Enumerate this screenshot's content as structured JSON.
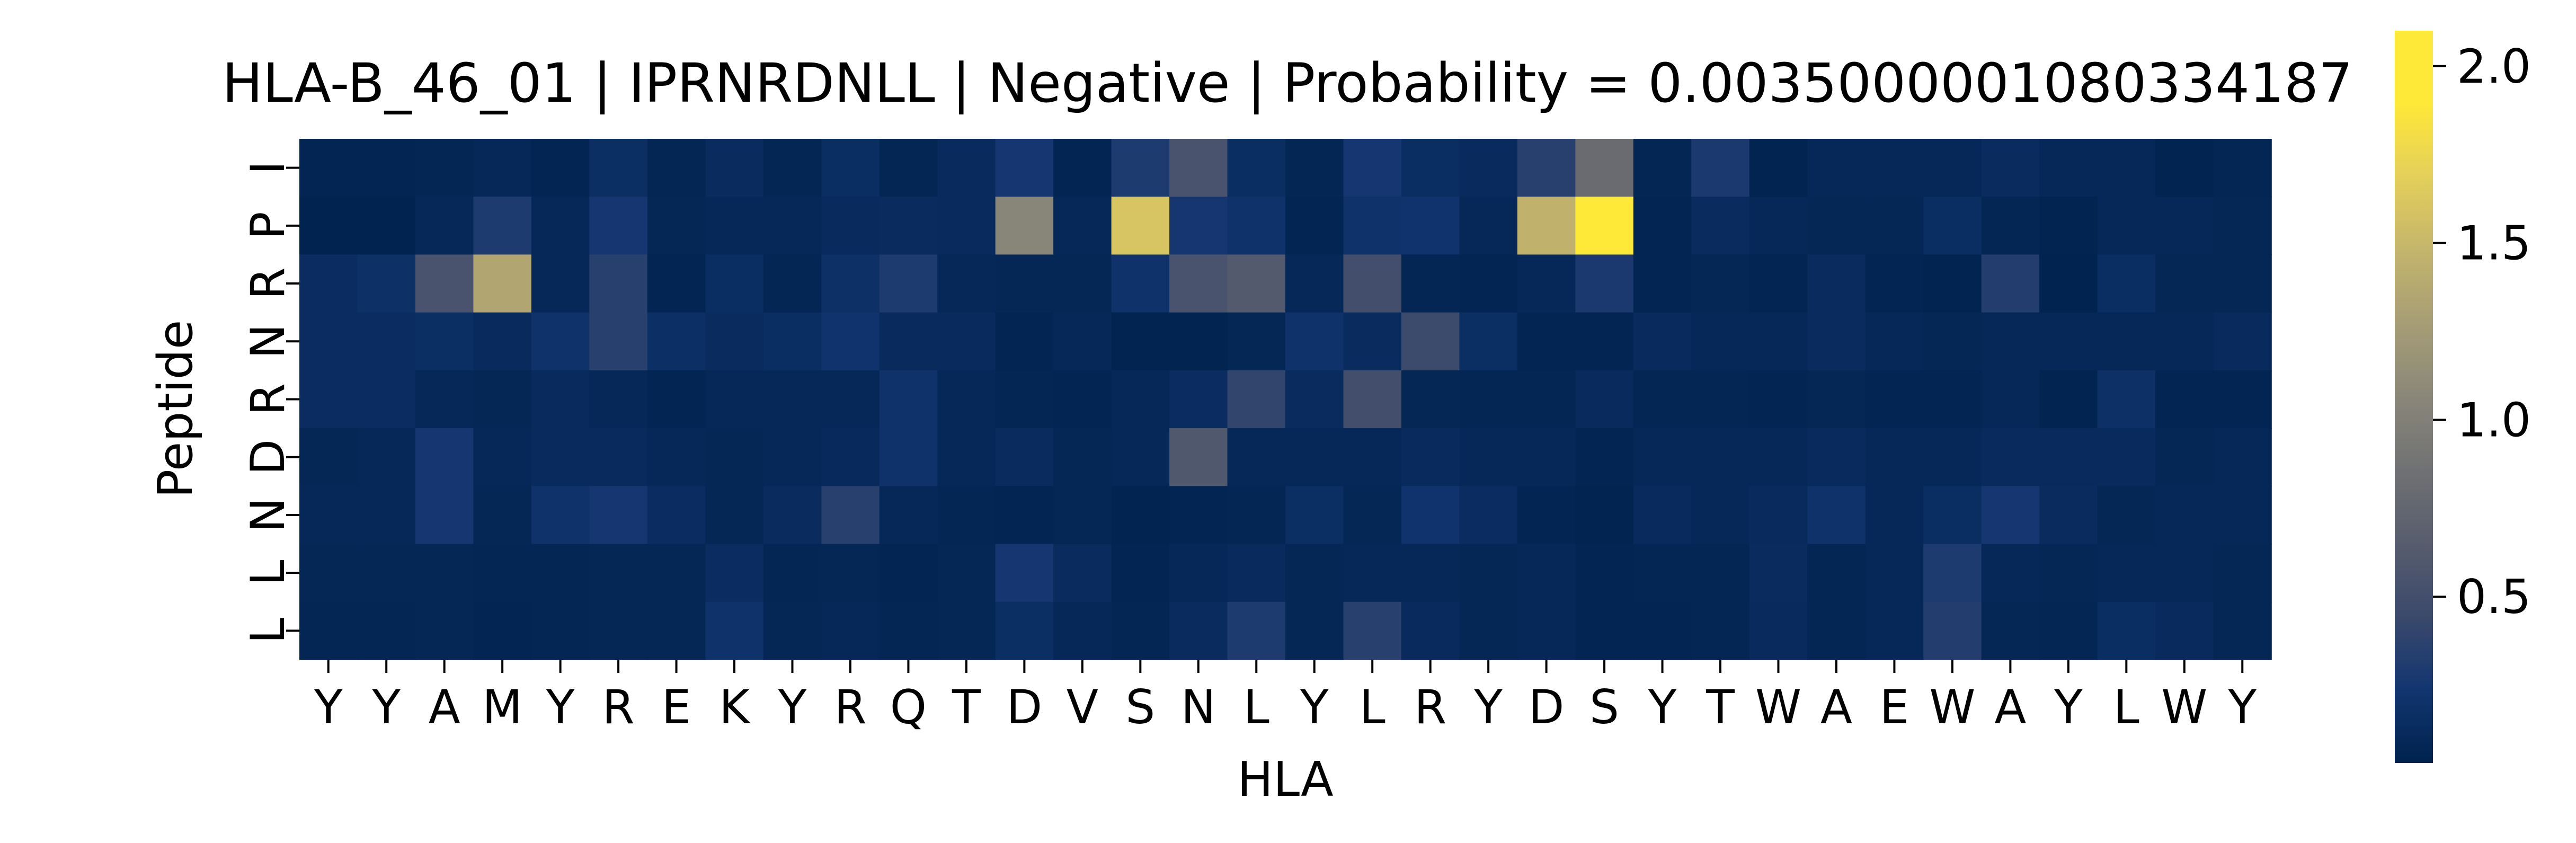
{
  "chart_data": {
    "type": "heatmap",
    "title": "HLA-B_46_01 | IPRNRDNLL | Negative | Probability = 0.0035000001080334187",
    "xlabel": "HLA",
    "ylabel": "Peptide",
    "x_categories": [
      "Y",
      "Y",
      "A",
      "M",
      "Y",
      "R",
      "E",
      "K",
      "Y",
      "R",
      "Q",
      "T",
      "D",
      "V",
      "S",
      "N",
      "L",
      "Y",
      "L",
      "R",
      "Y",
      "D",
      "S",
      "Y",
      "T",
      "W",
      "A",
      "E",
      "W",
      "A",
      "Y",
      "L",
      "W",
      "Y"
    ],
    "y_categories": [
      "I",
      "P",
      "R",
      "N",
      "R",
      "D",
      "N",
      "L",
      "L"
    ],
    "colormap": "cividis",
    "colorbar": {
      "min": 0.03,
      "max": 2.1,
      "ticks": [
        0.5,
        1.0,
        1.5,
        2.0
      ],
      "tick_labels": [
        "0.5",
        "1.0",
        "1.5",
        "2.0"
      ]
    },
    "values": [
      [
        0.06,
        0.06,
        0.07,
        0.1,
        0.06,
        0.16,
        0.07,
        0.13,
        0.07,
        0.15,
        0.07,
        0.12,
        0.25,
        0.06,
        0.3,
        0.55,
        0.15,
        0.07,
        0.25,
        0.15,
        0.12,
        0.35,
        0.8,
        0.07,
        0.28,
        0.05,
        0.1,
        0.1,
        0.1,
        0.13,
        0.1,
        0.1,
        0.05,
        0.07
      ],
      [
        0.04,
        0.04,
        0.1,
        0.3,
        0.1,
        0.25,
        0.08,
        0.1,
        0.1,
        0.12,
        0.13,
        0.12,
        1.05,
        0.1,
        1.6,
        0.25,
        0.2,
        0.06,
        0.2,
        0.22,
        0.1,
        1.45,
        2.1,
        0.06,
        0.13,
        0.1,
        0.08,
        0.08,
        0.15,
        0.07,
        0.05,
        0.1,
        0.1,
        0.08
      ],
      [
        0.14,
        0.18,
        0.55,
        1.35,
        0.1,
        0.35,
        0.06,
        0.15,
        0.07,
        0.18,
        0.3,
        0.1,
        0.08,
        0.08,
        0.2,
        0.55,
        0.62,
        0.1,
        0.5,
        0.07,
        0.06,
        0.1,
        0.28,
        0.06,
        0.08,
        0.06,
        0.13,
        0.06,
        0.05,
        0.32,
        0.04,
        0.15,
        0.08,
        0.08
      ],
      [
        0.14,
        0.14,
        0.16,
        0.12,
        0.2,
        0.35,
        0.17,
        0.13,
        0.15,
        0.22,
        0.12,
        0.12,
        0.06,
        0.09,
        0.05,
        0.05,
        0.08,
        0.2,
        0.13,
        0.45,
        0.16,
        0.06,
        0.06,
        0.12,
        0.1,
        0.1,
        0.13,
        0.1,
        0.08,
        0.1,
        0.1,
        0.1,
        0.1,
        0.12
      ],
      [
        0.14,
        0.14,
        0.1,
        0.08,
        0.12,
        0.1,
        0.06,
        0.09,
        0.09,
        0.1,
        0.2,
        0.1,
        0.07,
        0.06,
        0.1,
        0.14,
        0.4,
        0.13,
        0.5,
        0.08,
        0.07,
        0.07,
        0.12,
        0.07,
        0.07,
        0.06,
        0.08,
        0.06,
        0.06,
        0.09,
        0.05,
        0.18,
        0.06,
        0.06
      ],
      [
        0.08,
        0.1,
        0.25,
        0.09,
        0.12,
        0.12,
        0.1,
        0.08,
        0.1,
        0.11,
        0.2,
        0.1,
        0.13,
        0.08,
        0.09,
        0.6,
        0.1,
        0.1,
        0.1,
        0.12,
        0.1,
        0.09,
        0.06,
        0.1,
        0.1,
        0.1,
        0.12,
        0.1,
        0.1,
        0.12,
        0.12,
        0.12,
        0.08,
        0.1
      ],
      [
        0.1,
        0.1,
        0.25,
        0.08,
        0.2,
        0.25,
        0.14,
        0.08,
        0.13,
        0.35,
        0.1,
        0.07,
        0.06,
        0.08,
        0.05,
        0.06,
        0.07,
        0.16,
        0.08,
        0.22,
        0.14,
        0.06,
        0.05,
        0.12,
        0.1,
        0.12,
        0.2,
        0.1,
        0.15,
        0.25,
        0.13,
        0.08,
        0.1,
        0.1
      ],
      [
        0.08,
        0.08,
        0.08,
        0.07,
        0.07,
        0.08,
        0.08,
        0.14,
        0.07,
        0.08,
        0.06,
        0.08,
        0.25,
        0.13,
        0.06,
        0.09,
        0.12,
        0.08,
        0.1,
        0.09,
        0.08,
        0.09,
        0.06,
        0.07,
        0.07,
        0.13,
        0.07,
        0.1,
        0.3,
        0.09,
        0.08,
        0.1,
        0.1,
        0.08
      ],
      [
        0.07,
        0.07,
        0.08,
        0.06,
        0.07,
        0.08,
        0.08,
        0.2,
        0.08,
        0.09,
        0.07,
        0.08,
        0.16,
        0.1,
        0.07,
        0.13,
        0.3,
        0.08,
        0.35,
        0.12,
        0.08,
        0.1,
        0.06,
        0.06,
        0.07,
        0.12,
        0.07,
        0.1,
        0.32,
        0.08,
        0.07,
        0.15,
        0.12,
        0.08
      ]
    ]
  }
}
